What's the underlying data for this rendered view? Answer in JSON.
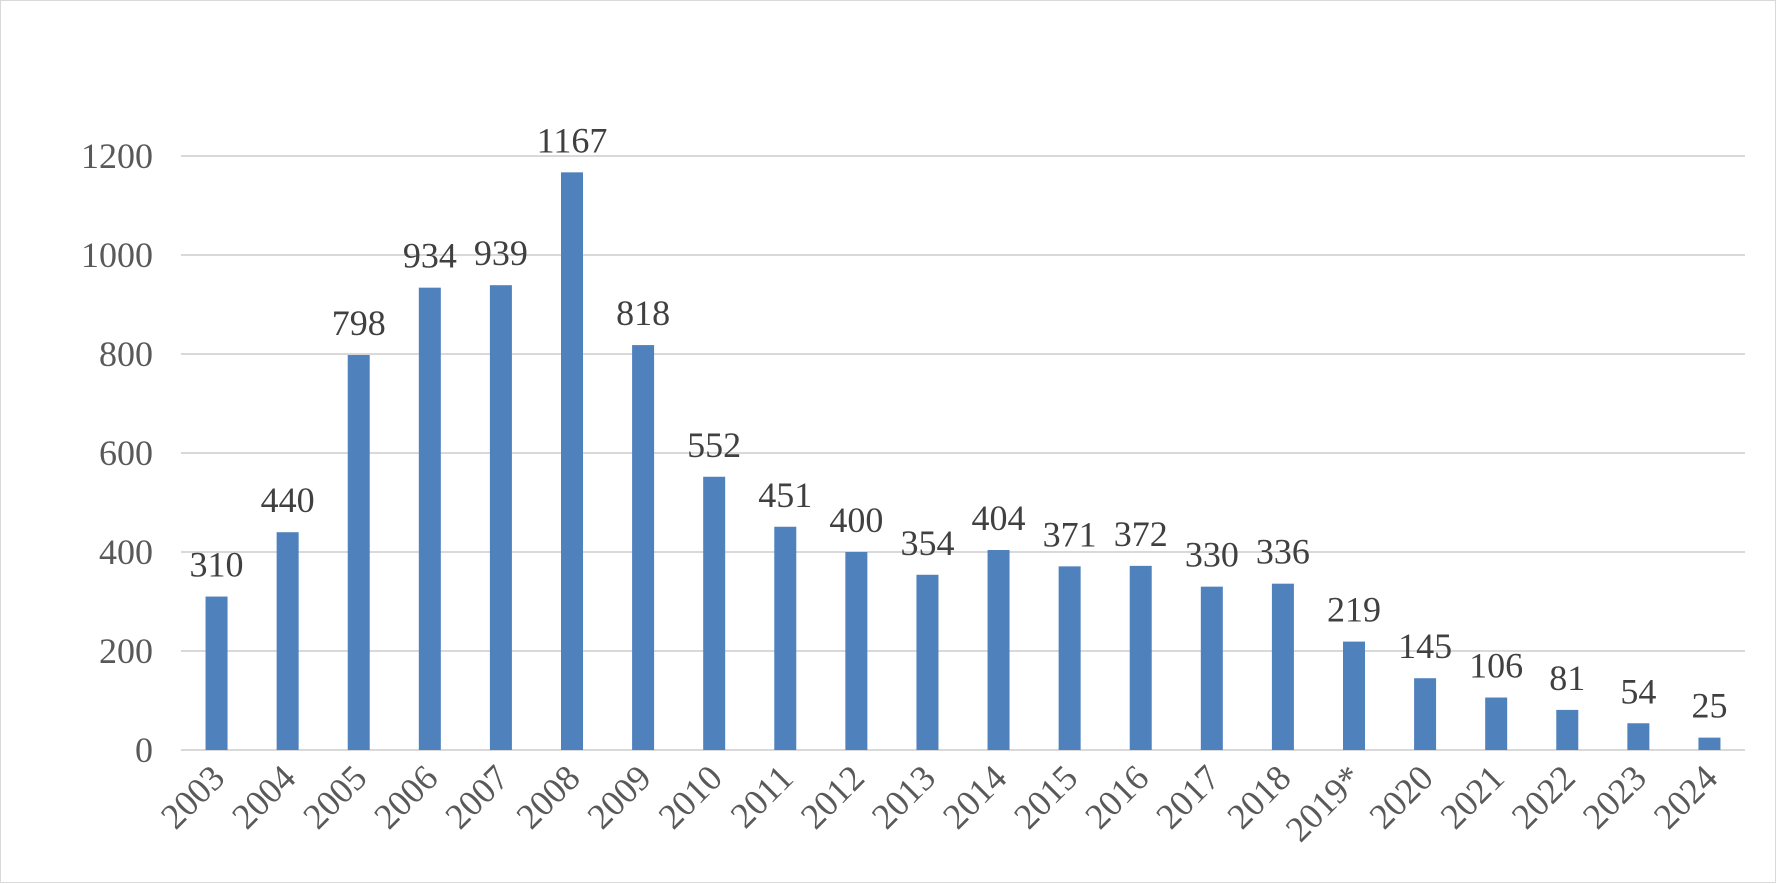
{
  "chart_data": {
    "type": "bar",
    "title": "",
    "xlabel": "",
    "ylabel": "",
    "categories": [
      "2003",
      "2004",
      "2005",
      "2006",
      "2007",
      "2008",
      "2009",
      "2010",
      "2011",
      "2012",
      "2013",
      "2014",
      "2015",
      "2016",
      "2017",
      "2018",
      "2019*",
      "2020",
      "2021",
      "2022",
      "2023",
      "2024"
    ],
    "values": [
      310,
      440,
      798,
      934,
      939,
      1167,
      818,
      552,
      451,
      400,
      354,
      404,
      371,
      372,
      330,
      336,
      219,
      145,
      106,
      81,
      54,
      25
    ],
    "ylim": [
      0,
      1200
    ],
    "yticks": [
      "0",
      "200",
      "400",
      "600",
      "800",
      "1000",
      "1200"
    ],
    "grid": true,
    "legend": "none",
    "colors": {
      "bar": "#4f81bd",
      "grid": "#d9d9d9",
      "axis": "#d9d9d9",
      "tick_text": "#595959",
      "label_text": "#404040"
    }
  }
}
